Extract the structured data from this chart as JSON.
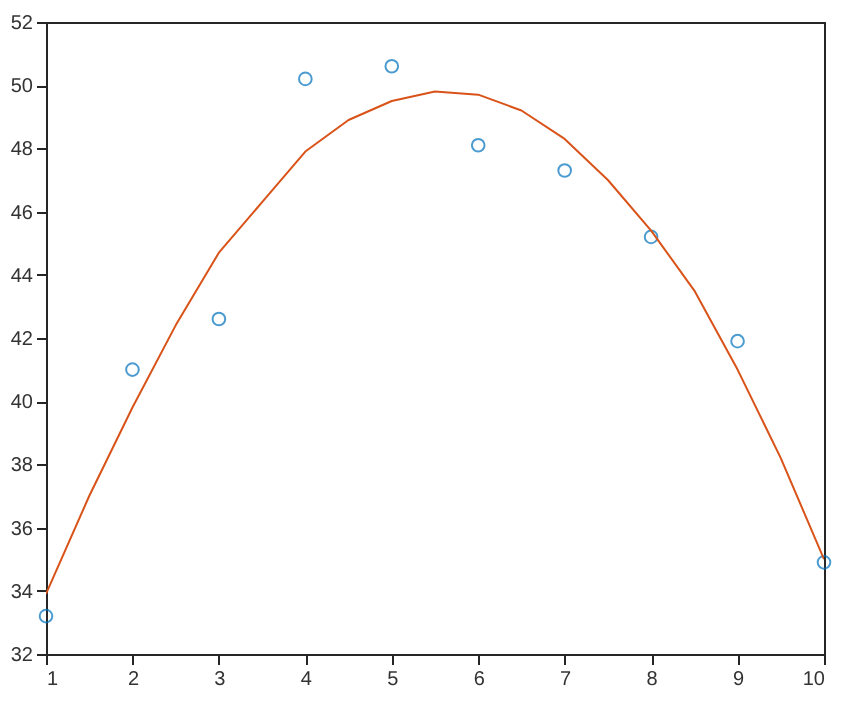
{
  "chart_data": {
    "type": "scatter",
    "xlim": [
      1,
      10
    ],
    "xticks": [
      1,
      2,
      3,
      4,
      5,
      6,
      7,
      8,
      9,
      10
    ],
    "ylim": [
      32,
      52
    ],
    "yticks": [
      32,
      34,
      36,
      38,
      40,
      42,
      44,
      46,
      48,
      50,
      52
    ],
    "series": [
      {
        "color": "#0072bd",
        "marker": "circle",
        "x": [
          1,
          2,
          3,
          4,
          5,
          6,
          7,
          8,
          9,
          10
        ],
        "values": [
          33.2,
          41.0,
          42.6,
          50.2,
          50.6,
          48.1,
          47.3,
          45.2,
          41.9,
          34.9
        ]
      },
      {
        "type": "line",
        "color": "#d95319",
        "x": [
          1,
          1.5,
          2,
          2.5,
          3,
          3.5,
          4,
          4.5,
          5,
          5.5,
          6,
          6.5,
          7,
          7.5,
          8,
          8.5,
          9,
          9.5,
          10
        ],
        "values": [
          33.9,
          37.0,
          39.8,
          42.4,
          44.7,
          46.3,
          47.9,
          48.9,
          49.5,
          49.8,
          49.7,
          49.2,
          48.3,
          47.0,
          45.4,
          43.5,
          41.0,
          38.2,
          35.0
        ]
      }
    ]
  }
}
